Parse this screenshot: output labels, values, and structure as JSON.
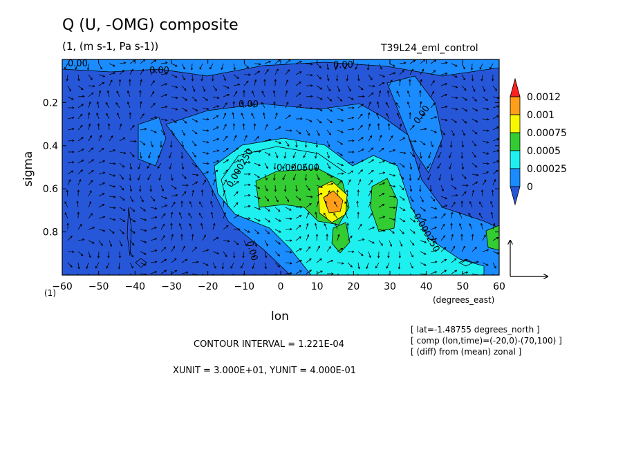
{
  "chart_data": {
    "type": "heatmap",
    "title": "Q (U, -OMG) composite",
    "subtitle": "(1, (m s-1, Pa s-1))",
    "run_name": "T39L24_eml_control",
    "xlabel": "lon",
    "x_units": "(degrees_east)",
    "ylabel": "sigma",
    "y_prefix": "(1)",
    "xlim": [
      -60,
      60
    ],
    "ylim": [
      1.0,
      0.0
    ],
    "x_ticks": [
      -60,
      -50,
      -40,
      -30,
      -20,
      -10,
      0,
      10,
      20,
      30,
      40,
      50,
      60
    ],
    "y_ticks": [
      0.2,
      0.4,
      0.6,
      0.8
    ],
    "colorbar": {
      "levels": [
        "0.0012",
        "0.001",
        "0.00075",
        "0.0005",
        "0.00025",
        "0"
      ],
      "colors": [
        "#ff2020",
        "#ff9e1a",
        "#f7f700",
        "#33cc33",
        "#1ef0f0",
        "#1a8cff",
        "#2757d9"
      ]
    },
    "contour_labels": [
      "0.00",
      "0.00",
      "0.00",
      "0.00",
      "0.00",
      "0.00",
      "0.000250",
      "0.000500",
      "0.000250"
    ],
    "notes": [
      "[ lat=-1.48755 degrees_north ]",
      "[ comp (lon,time)=(-20,0)-(70,100) ]",
      "[ (diff) from (mean) zonal ]"
    ],
    "contour_interval": "CONTOUR INTERVAL = 1.221E-04",
    "units_line": "XUNIT = 3.000E+01, YUNIT = 4.000E-01"
  }
}
